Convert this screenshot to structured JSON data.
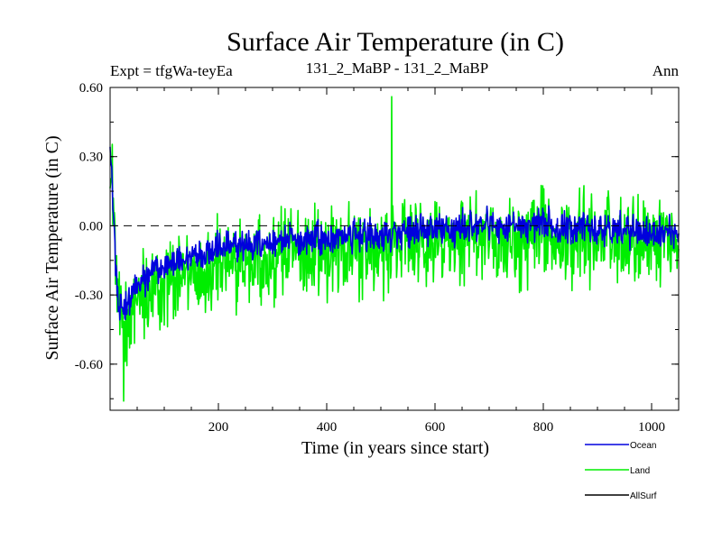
{
  "chart_data": {
    "type": "line",
    "title": "Surface Air Temperature (in C)",
    "subtitle_left": "Expt = tfgWa-teyEa",
    "subtitle_center": "131_2_MaBP - 131_2_MaBP",
    "subtitle_right": "Ann",
    "xlabel": "Time (in years since start)",
    "ylabel": "Surface Air Temperature (in C)",
    "xlim": [
      0,
      1050
    ],
    "ylim": [
      -0.8,
      0.6
    ],
    "x_ticks": [
      200,
      400,
      600,
      800,
      1000
    ],
    "x_tick_labels": [
      "200",
      "400",
      "600",
      "800",
      "1000"
    ],
    "y_ticks": [
      0.6,
      0.3,
      0.0,
      -0.3,
      -0.6
    ],
    "y_tick_labels": [
      "0.60",
      "0.30",
      "0.00",
      "-0.30",
      "-0.60"
    ],
    "reference_line": 0.0,
    "legend": [
      "Ocean",
      "Land",
      "AllSurf"
    ],
    "series": [
      {
        "name": "Land",
        "color": "#00ee00",
        "trend": {
          "x": [
            0,
            5,
            15,
            30,
            60,
            100,
            150,
            200,
            300,
            400,
            500,
            600,
            700,
            800,
            900,
            1000,
            1050
          ],
          "y": [
            0.3,
            0.15,
            -0.38,
            -0.4,
            -0.3,
            -0.25,
            -0.2,
            -0.17,
            -0.14,
            -0.11,
            -0.1,
            -0.08,
            -0.05,
            -0.05,
            -0.05,
            -0.04,
            -0.05
          ]
        },
        "noise_amplitude": 0.2,
        "extremes": {
          "max": 0.56,
          "max_at": 520,
          "min": -0.76,
          "min_at": 25
        }
      },
      {
        "name": "Ocean",
        "color": "#0000dd",
        "trend": {
          "x": [
            0,
            5,
            15,
            30,
            60,
            100,
            150,
            200,
            300,
            400,
            500,
            600,
            700,
            800,
            900,
            1000,
            1050
          ],
          "y": [
            0.38,
            0.1,
            -0.38,
            -0.34,
            -0.24,
            -0.18,
            -0.13,
            -0.1,
            -0.07,
            -0.05,
            -0.04,
            -0.02,
            0.0,
            0.0,
            -0.01,
            -0.02,
            -0.02
          ]
        },
        "noise_amplitude": 0.07
      },
      {
        "name": "AllSurf",
        "color": "#000000"
      }
    ]
  }
}
